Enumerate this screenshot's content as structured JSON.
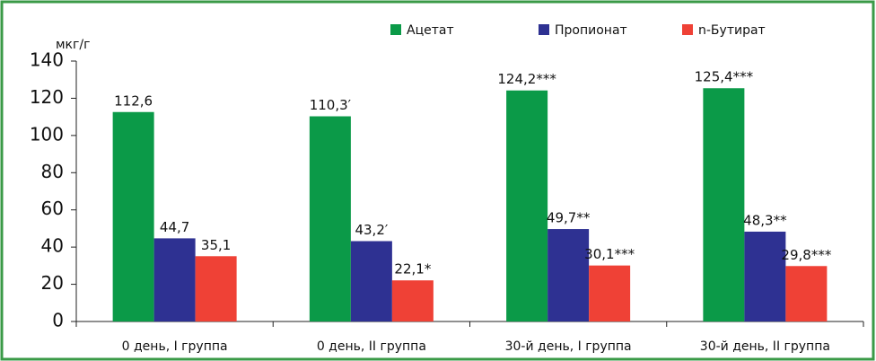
{
  "chart_data": {
    "type": "bar",
    "y_label": "мкг/г",
    "categories": [
      "0 день, I группа",
      "0 день, II группа",
      "30-й день, I группа",
      "30-й день, II группа"
    ],
    "series": [
      {
        "name": "Ацетат",
        "color": "#0b9a48",
        "values": [
          112.6,
          110.3,
          124.2,
          125.4
        ],
        "value_labels": [
          "112,6",
          "110,3′",
          "124,2***",
          "125,4***"
        ]
      },
      {
        "name": "Пропионат",
        "color": "#2e3192",
        "values": [
          44.7,
          43.2,
          49.7,
          48.3
        ],
        "value_labels": [
          "44,7",
          "43,2′",
          "49,7**",
          "48,3**"
        ]
      },
      {
        "name": "n-Бутират",
        "color": "#ef4136",
        "values": [
          35.1,
          22.1,
          30.1,
          29.8
        ],
        "value_labels": [
          "35,1",
          "22,1*",
          "30,1***",
          "29,8***"
        ]
      }
    ],
    "ylim": [
      0,
      140
    ],
    "yticks": [
      0,
      20,
      40,
      60,
      80,
      100,
      120,
      140
    ],
    "legend": "top"
  }
}
